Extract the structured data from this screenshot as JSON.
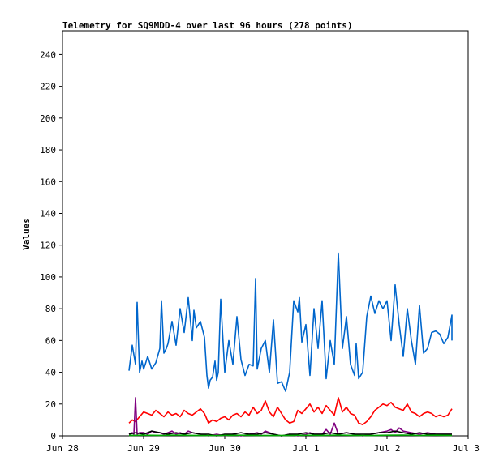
{
  "chart_data": {
    "type": "line",
    "title": "Telemetry for SQ9MDD-4 over last 96 hours (278 points)",
    "ylabel": "Values",
    "xlabel": "",
    "xlim": [
      0,
      5
    ],
    "ylim": [
      0,
      255
    ],
    "y_ticks": [
      0,
      20,
      40,
      60,
      80,
      100,
      120,
      140,
      160,
      180,
      200,
      220,
      240
    ],
    "x_ticks": [
      0,
      1,
      2,
      3,
      4,
      5
    ],
    "x_tick_labels": [
      "Jun 28",
      "Jun 29",
      "Jun 30",
      "Jul 1",
      "Jul 2",
      "Jul 3"
    ],
    "grid": false,
    "legend": "none",
    "series": [
      {
        "color": "#0066cc",
        "x": [
          0.82,
          0.86,
          0.9,
          0.92,
          0.95,
          0.98,
          1.0,
          1.02,
          1.05,
          1.1,
          1.15,
          1.2,
          1.22,
          1.25,
          1.28,
          1.3,
          1.35,
          1.4,
          1.45,
          1.5,
          1.55,
          1.6,
          1.62,
          1.65,
          1.7,
          1.75,
          1.78,
          1.8,
          1.82,
          1.85,
          1.88,
          1.9,
          1.92,
          1.95,
          2.0,
          2.05,
          2.1,
          2.15,
          2.2,
          2.25,
          2.3,
          2.35,
          2.38,
          2.4,
          2.45,
          2.5,
          2.55,
          2.6,
          2.65,
          2.7,
          2.75,
          2.8,
          2.85,
          2.9,
          2.92,
          2.95,
          3.0,
          3.05,
          3.1,
          3.15,
          3.2,
          3.25,
          3.3,
          3.35,
          3.4,
          3.45,
          3.5,
          3.55,
          3.6,
          3.62,
          3.65,
          3.7,
          3.75,
          3.8,
          3.85,
          3.9,
          3.95,
          4.0,
          4.05,
          4.1,
          4.15,
          4.2,
          4.25,
          4.3,
          4.35,
          4.4,
          4.45,
          4.5,
          4.55,
          4.6,
          4.65,
          4.7,
          4.75,
          4.8,
          4.8
        ],
        "y": [
          41,
          57,
          45,
          84,
          40,
          47,
          42,
          45,
          50,
          42,
          46,
          55,
          85,
          52,
          55,
          58,
          72,
          57,
          80,
          65,
          87,
          60,
          79,
          68,
          72,
          62,
          38,
          30,
          35,
          37,
          47,
          35,
          40,
          86,
          40,
          60,
          45,
          75,
          48,
          38,
          45,
          44,
          99,
          42,
          55,
          60,
          40,
          73,
          33,
          34,
          28,
          40,
          85,
          78,
          87,
          59,
          70,
          38,
          80,
          55,
          85,
          36,
          60,
          45,
          115,
          55,
          75,
          45,
          38,
          58,
          36,
          40,
          75,
          88,
          77,
          85,
          80,
          85,
          60,
          95,
          70,
          50,
          80,
          60,
          45,
          82,
          52,
          55,
          65,
          66,
          64,
          58,
          62,
          76,
          60
        ]
      },
      {
        "color": "#ff0000",
        "x": [
          0.82,
          0.86,
          0.9,
          0.95,
          1.0,
          1.05,
          1.1,
          1.15,
          1.2,
          1.25,
          1.3,
          1.35,
          1.4,
          1.45,
          1.5,
          1.55,
          1.6,
          1.65,
          1.7,
          1.75,
          1.8,
          1.85,
          1.9,
          1.95,
          2.0,
          2.05,
          2.1,
          2.15,
          2.2,
          2.25,
          2.3,
          2.35,
          2.4,
          2.45,
          2.5,
          2.55,
          2.6,
          2.65,
          2.7,
          2.75,
          2.8,
          2.85,
          2.9,
          2.95,
          3.0,
          3.05,
          3.1,
          3.15,
          3.2,
          3.25,
          3.3,
          3.35,
          3.4,
          3.45,
          3.5,
          3.55,
          3.6,
          3.65,
          3.7,
          3.75,
          3.8,
          3.85,
          3.9,
          3.95,
          4.0,
          4.05,
          4.1,
          4.15,
          4.2,
          4.25,
          4.3,
          4.35,
          4.4,
          4.45,
          4.5,
          4.55,
          4.6,
          4.65,
          4.7,
          4.75,
          4.8
        ],
        "y": [
          8,
          10,
          9,
          12,
          15,
          14,
          13,
          16,
          14,
          12,
          15,
          13,
          14,
          12,
          16,
          14,
          13,
          15,
          17,
          14,
          8,
          10,
          9,
          11,
          12,
          10,
          13,
          14,
          12,
          15,
          13,
          18,
          14,
          16,
          22,
          15,
          12,
          18,
          14,
          10,
          8,
          9,
          16,
          14,
          17,
          20,
          15,
          18,
          14,
          19,
          16,
          13,
          24,
          15,
          18,
          14,
          13,
          8,
          7,
          9,
          12,
          16,
          18,
          20,
          19,
          21,
          18,
          17,
          16,
          20,
          15,
          14,
          12,
          14,
          15,
          14,
          12,
          13,
          12,
          13,
          17
        ]
      },
      {
        "color": "#800080",
        "x": [
          0.82,
          0.86,
          0.88,
          0.9,
          0.92,
          0.95,
          1.0,
          1.05,
          1.1,
          1.15,
          1.2,
          1.25,
          1.3,
          1.35,
          1.4,
          1.45,
          1.5,
          1.55,
          1.6,
          1.7,
          1.8,
          1.9,
          2.0,
          2.1,
          2.2,
          2.3,
          2.4,
          2.45,
          2.5,
          2.6,
          2.7,
          2.8,
          2.9,
          3.0,
          3.05,
          3.1,
          3.2,
          3.25,
          3.3,
          3.35,
          3.4,
          3.5,
          3.6,
          3.7,
          3.8,
          3.9,
          4.0,
          4.05,
          4.1,
          4.15,
          4.2,
          4.3,
          4.4,
          4.5,
          4.6,
          4.7,
          4.8
        ],
        "y": [
          1,
          2,
          1,
          24,
          1,
          2,
          2,
          1,
          3,
          2,
          2,
          1,
          2,
          3,
          1,
          2,
          1,
          3,
          2,
          1,
          0,
          1,
          0,
          1,
          0,
          1,
          2,
          1,
          3,
          1,
          0,
          1,
          0,
          1,
          2,
          1,
          1,
          4,
          1,
          8,
          1,
          2,
          1,
          0,
          1,
          2,
          3,
          4,
          2,
          5,
          3,
          2,
          1,
          2,
          1,
          1,
          1
        ]
      },
      {
        "color": "#000000",
        "x": [
          0.82,
          0.9,
          1.0,
          1.1,
          1.2,
          1.3,
          1.4,
          1.5,
          1.6,
          1.7,
          1.8,
          1.9,
          2.0,
          2.1,
          2.2,
          2.3,
          2.4,
          2.5,
          2.6,
          2.7,
          2.8,
          2.9,
          3.0,
          3.1,
          3.2,
          3.3,
          3.4,
          3.5,
          3.6,
          3.7,
          3.8,
          3.9,
          4.0,
          4.1,
          4.2,
          4.3,
          4.4,
          4.5,
          4.6,
          4.7,
          4.8
        ],
        "y": [
          1,
          2,
          1,
          3,
          2,
          1,
          2,
          1,
          2,
          1,
          1,
          0,
          1,
          1,
          2,
          1,
          1,
          2,
          1,
          0,
          1,
          1,
          2,
          1,
          1,
          2,
          1,
          2,
          1,
          1,
          1,
          2,
          2,
          3,
          2,
          1,
          2,
          1,
          1,
          1,
          1
        ]
      },
      {
        "color": "#00aa00",
        "x": [
          0.82,
          1.0,
          1.2,
          1.4,
          1.6,
          1.8,
          2.0,
          2.2,
          2.4,
          2.6,
          2.8,
          3.0,
          3.2,
          3.4,
          3.6,
          3.8,
          4.0,
          4.2,
          4.4,
          4.6,
          4.8
        ],
        "y": [
          0.3,
          0.4,
          0.3,
          0.5,
          0.3,
          0.2,
          0.3,
          0.4,
          0.3,
          0.2,
          0.3,
          0.4,
          0.3,
          0.5,
          0.3,
          0.2,
          0.4,
          0.5,
          0.3,
          0.4,
          0.3
        ]
      }
    ]
  }
}
